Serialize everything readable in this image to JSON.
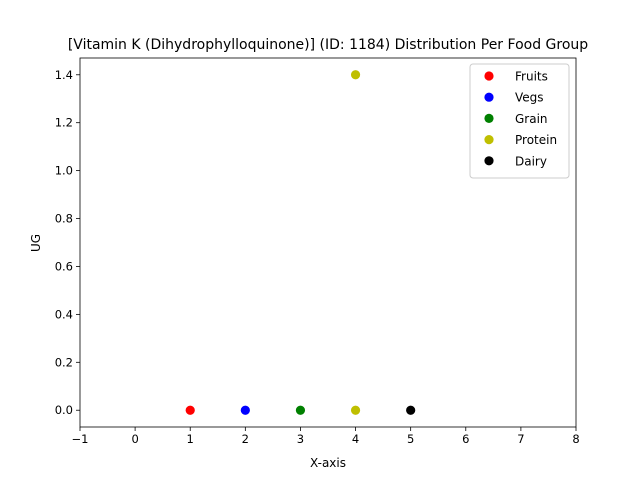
{
  "chart_data": {
    "type": "scatter",
    "title": "[Vitamin K (Dihydrophylloquinone)] (ID: 1184) Distribution Per Food Group",
    "xlabel": "X-axis",
    "ylabel": "UG",
    "xlim": [
      -1,
      8
    ],
    "ylim": [
      -0.07,
      1.47
    ],
    "xticks": [
      -1,
      0,
      1,
      2,
      3,
      4,
      5,
      6,
      7,
      8
    ],
    "yticks": [
      0.0,
      0.2,
      0.4,
      0.6,
      0.8,
      1.0,
      1.2,
      1.4
    ],
    "ytick_labels": [
      "0.0",
      "0.2",
      "0.4",
      "0.6",
      "0.8",
      "1.0",
      "1.2",
      "1.4"
    ],
    "grid": false,
    "legend_position": "top-right",
    "series": [
      {
        "name": "Fruits",
        "color": "#ff0000",
        "x": [
          1
        ],
        "y": [
          0.0
        ]
      },
      {
        "name": "Vegs",
        "color": "#0000ff",
        "x": [
          2
        ],
        "y": [
          0.0
        ]
      },
      {
        "name": "Grain",
        "color": "#008000",
        "x": [
          3
        ],
        "y": [
          0.0
        ]
      },
      {
        "name": "Protein",
        "color": "#bfbf00",
        "x": [
          4,
          4
        ],
        "y": [
          0.0,
          1.4
        ]
      },
      {
        "name": "Dairy",
        "color": "#000000",
        "x": [
          5
        ],
        "y": [
          0.0
        ]
      }
    ]
  }
}
